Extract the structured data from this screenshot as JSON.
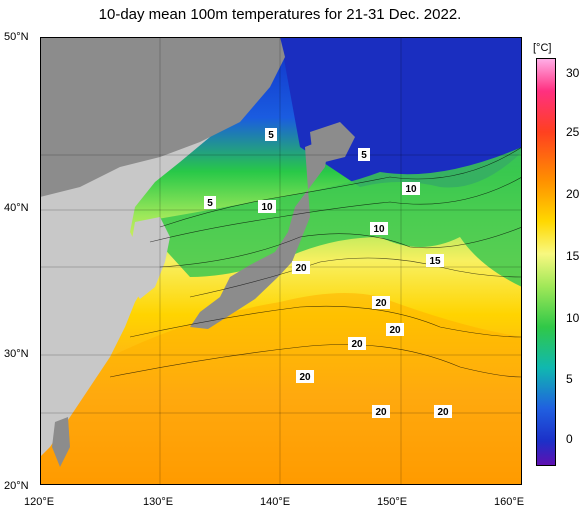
{
  "title": "10-day mean 100m temperatures for 21-31 Dec. 2022.",
  "lat_labels": [
    "50°N",
    "40°N",
    "30°N",
    "20°N"
  ],
  "lon_labels": [
    "120°E",
    "130°E",
    "140°E",
    "150°E",
    "160°E"
  ],
  "colorbar": {
    "unit": "[°C]",
    "ticks": [
      "30",
      "25",
      "20",
      "15",
      "10",
      "5",
      "0"
    ],
    "colors": [
      "#ff7fd0",
      "#ff3050",
      "#ff8c00",
      "#ffd400",
      "#f5f56a",
      "#9ee85a",
      "#28c848",
      "#0fb4a0",
      "#1e74e0",
      "#1c2ec8",
      "#5a14b4"
    ]
  },
  "contour_labels": [
    "5",
    "5",
    "5",
    "10",
    "10",
    "10",
    "15",
    "20",
    "20",
    "20",
    "20",
    "20",
    "20",
    "20"
  ],
  "colors": {
    "land": "#c8c8c8",
    "land_dark": "#8c8c8c"
  }
}
